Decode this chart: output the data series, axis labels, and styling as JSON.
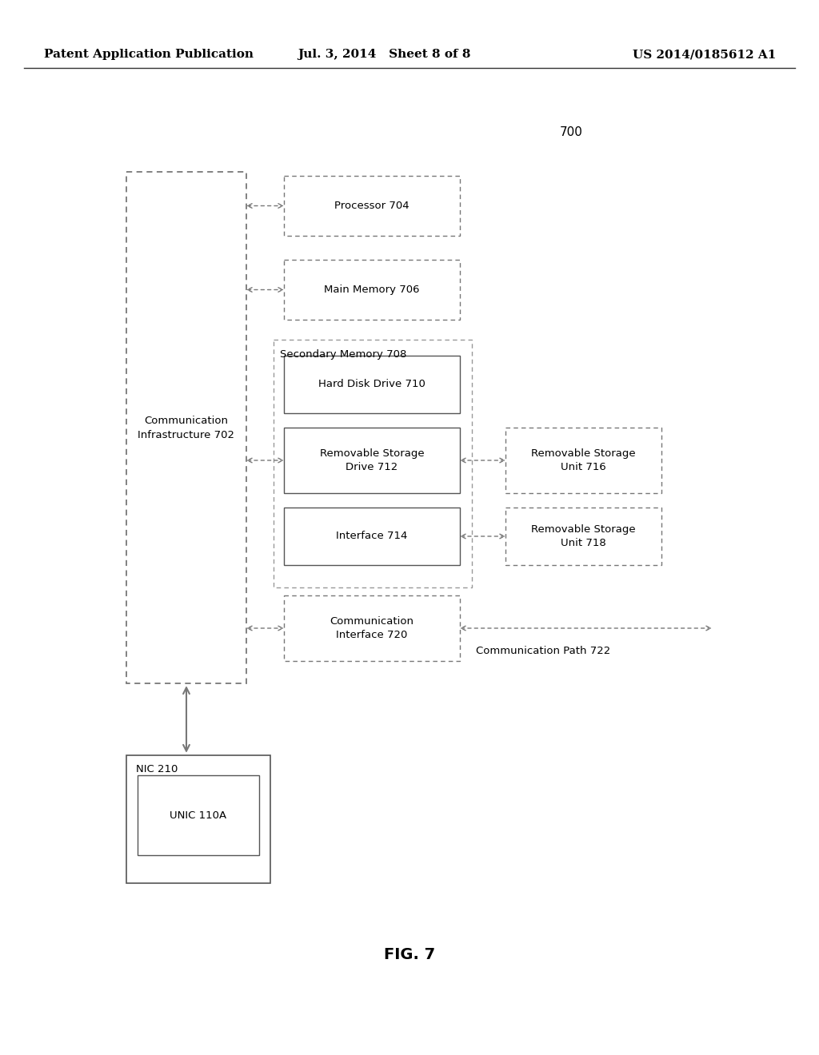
{
  "bg_color": "#ffffff",
  "header_left": "Patent Application Publication",
  "header_mid": "Jul. 3, 2014   Sheet 8 of 8",
  "header_right": "US 2014/0185612 A1",
  "fig_label": "700",
  "fig_caption": "FIG. 7",
  "comm_infra_label": "Communication\nInfrastructure 702",
  "comm_path_label": "Communication Path 722",
  "text_color": "#000000",
  "box_color": "#555555",
  "dash_color": "#777777"
}
